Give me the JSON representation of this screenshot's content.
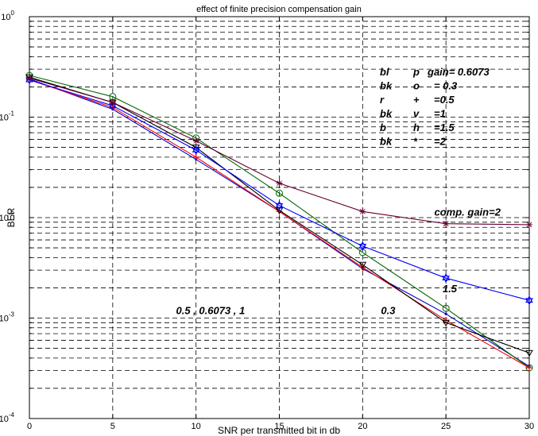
{
  "chart_data": {
    "type": "line",
    "title": "effect of finite precision compensation gain",
    "xlabel": "SNR per transmitted bit in db",
    "ylabel": "BER",
    "xlim": [
      0,
      30
    ],
    "ylim": [
      0.0001,
      1
    ],
    "yscale": "log",
    "grid": true,
    "x_ticks": [
      {
        "value": 0,
        "label": "0"
      },
      {
        "value": 5,
        "label": "5"
      },
      {
        "value": 10,
        "label": "10"
      },
      {
        "value": 15,
        "label": "15"
      },
      {
        "value": 20,
        "label": "20"
      },
      {
        "value": 25,
        "label": "25"
      },
      {
        "value": 30,
        "label": "30"
      }
    ],
    "y_ticks": [
      {
        "exp": -4,
        "base": "10",
        "sup": "-4"
      },
      {
        "exp": -3,
        "base": "10",
        "sup": "-3"
      },
      {
        "exp": -2,
        "base": "10",
        "sup": "-2"
      },
      {
        "exp": -1,
        "base": "10",
        "sup": "-1"
      },
      {
        "exp": 0,
        "base": "10",
        "sup": "0"
      }
    ],
    "x": [
      0,
      5,
      10,
      15,
      20,
      25,
      30
    ],
    "series": [
      {
        "name": "gain= 0.6073",
        "color": "#0000cc",
        "marker": "point",
        "values": [
          0.24,
          0.12,
          0.038,
          0.0115,
          0.0031,
          0.0011,
          0.00033
        ]
      },
      {
        "name": "=0.3",
        "color": "#006600",
        "marker": "circle",
        "values": [
          0.26,
          0.16,
          0.062,
          0.0175,
          0.0045,
          0.00125,
          0.00032
        ]
      },
      {
        "name": "=0.5",
        "color": "#ff0000",
        "marker": "plus",
        "values": [
          0.235,
          0.125,
          0.04,
          0.0115,
          0.0032,
          0.00095,
          0.00032
        ]
      },
      {
        "name": "=1",
        "color": "#000000",
        "marker": "triangle-down",
        "values": [
          0.25,
          0.14,
          0.05,
          0.0118,
          0.0034,
          0.0009,
          0.00045
        ]
      },
      {
        "name": "=1.5",
        "color": "#0000ff",
        "marker": "hexagram",
        "values": [
          0.235,
          0.13,
          0.047,
          0.0132,
          0.0052,
          0.0025,
          0.0015
        ]
      },
      {
        "name": "=2",
        "color": "#660033",
        "marker": "star",
        "values": [
          0.245,
          0.14,
          0.058,
          0.022,
          0.0115,
          0.0087,
          0.0085
        ]
      }
    ],
    "legend_codes": [
      {
        "c1": "bl",
        "c2": "p",
        "txt": "gain= 0.6073"
      },
      {
        "c1": "bk",
        "c2": "o",
        "txt": "= 0.3"
      },
      {
        "c1": "r",
        "c2": "+",
        "txt": "=0.5"
      },
      {
        "c1": "bk",
        "c2": "v",
        "txt": "=1"
      },
      {
        "c1": "b",
        "c2": "h",
        "txt": "=1.5"
      },
      {
        "c1": "bk",
        "c2": "*",
        "txt": "=2"
      }
    ],
    "legend_placement": "top-right",
    "annotations": [
      {
        "text": "comp. gain=2",
        "x": 24.3,
        "y": 0.0105
      },
      {
        "text": "1.5",
        "x": 24.8,
        "y": 0.0018
      },
      {
        "text": "0.5 , 0.6073 , 1",
        "x": 8.8,
        "y": 0.0011
      },
      {
        "text": "0.3",
        "x": 21.1,
        "y": 0.0011
      }
    ]
  }
}
